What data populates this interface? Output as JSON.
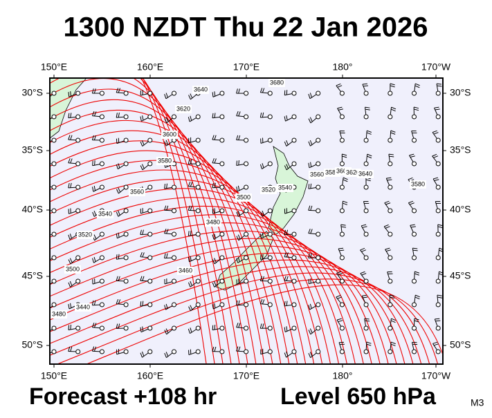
{
  "header": {
    "title": "1300 NZDT Thu 22 Jan 2026"
  },
  "map": {
    "lon_labels": [
      "150°E",
      "160°E",
      "170°E",
      "180°",
      "170°W"
    ],
    "lat_labels": [
      "30°S",
      "35°S",
      "40°S",
      "45°S",
      "50°S"
    ],
    "contour_labels": [
      "3680",
      "3640",
      "3620",
      "3600",
      "3580",
      "3560",
      "3540",
      "3520",
      "3500",
      "3480",
      "3440",
      "3500",
      "3480",
      "3460",
      "3520",
      "3540",
      "3560",
      "3580",
      "3600",
      "3620",
      "3640",
      "3580"
    ]
  },
  "footer": {
    "forecast": "Forecast +108 hr",
    "level": "Level 650 hPa",
    "model": "M3"
  }
}
